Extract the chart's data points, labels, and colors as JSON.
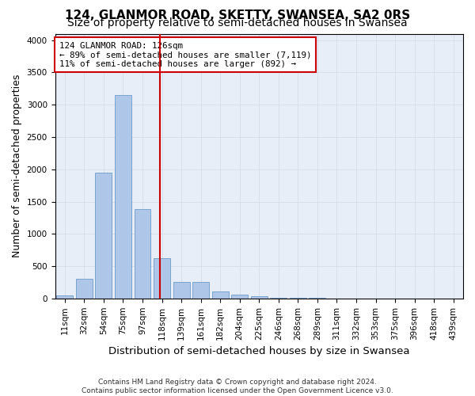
{
  "title": "124, GLANMOR ROAD, SKETTY, SWANSEA, SA2 0RS",
  "subtitle": "Size of property relative to semi-detached houses in Swansea",
  "xlabel": "Distribution of semi-detached houses by size in Swansea",
  "ylabel": "Number of semi-detached properties",
  "footer1": "Contains HM Land Registry data © Crown copyright and database right 2024.",
  "footer2": "Contains public sector information licensed under the Open Government Licence v3.0.",
  "property_size": 126,
  "property_label": "124 GLANMOR ROAD: 126sqm",
  "annotation_line1": "← 89% of semi-detached houses are smaller (7,119)",
  "annotation_line2": "11% of semi-detached houses are larger (892) →",
  "bin_labels": [
    "11sqm",
    "32sqm",
    "54sqm",
    "75sqm",
    "97sqm",
    "118sqm",
    "139sqm",
    "161sqm",
    "182sqm",
    "204sqm",
    "225sqm",
    "246sqm",
    "268sqm",
    "289sqm",
    "311sqm",
    "332sqm",
    "353sqm",
    "375sqm",
    "396sqm",
    "418sqm",
    "439sqm"
  ],
  "bar_heights": [
    50,
    300,
    1950,
    3150,
    1380,
    620,
    260,
    260,
    110,
    65,
    40,
    10,
    5,
    5,
    2,
    2,
    1,
    1,
    1,
    1,
    0
  ],
  "bar_color": "#aec6e8",
  "bar_edge_color": "#5a8fc0",
  "vline_color": "#cc0000",
  "grid_color": "#d0d8e8",
  "ylim": [
    0,
    4100
  ],
  "yticks": [
    0,
    500,
    1000,
    1500,
    2000,
    2500,
    3000,
    3500,
    4000
  ],
  "annotation_box_color": "#cc0000",
  "bg_color": "#e8eef8",
  "title_fontsize": 11,
  "subtitle_fontsize": 10,
  "axis_fontsize": 9,
  "tick_fontsize": 7.5,
  "footer_fontsize": 6.5
}
